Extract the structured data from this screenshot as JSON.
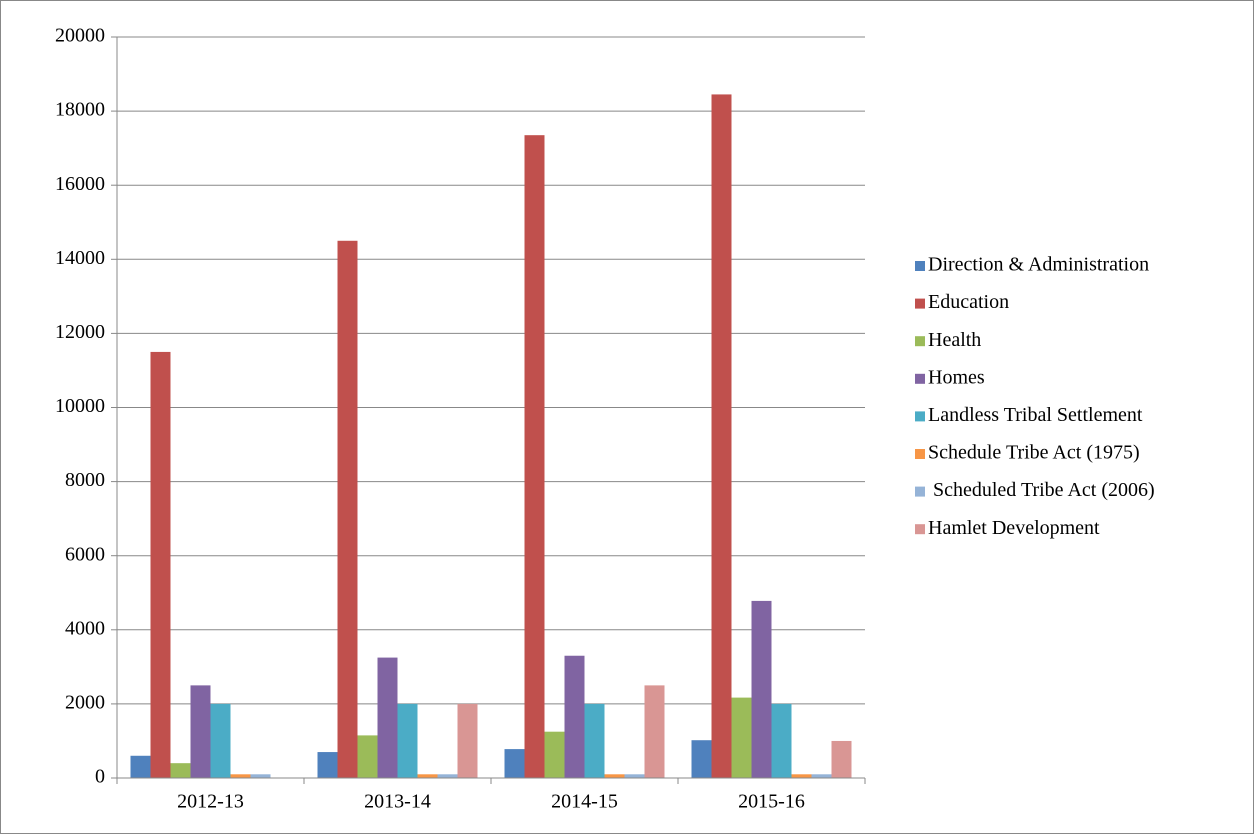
{
  "chart_data": {
    "type": "bar",
    "categories": [
      "2012-13",
      "2013-14",
      "2014-15",
      "2015-16"
    ],
    "series": [
      {
        "name": "Direction & Administration",
        "color": "#4f81bd",
        "values": [
          600,
          700,
          780,
          1020
        ]
      },
      {
        "name": "Education",
        "color": "#c0504d",
        "values": [
          11500,
          14500,
          17350,
          18450
        ]
      },
      {
        "name": "Health",
        "color": "#9bbb59",
        "values": [
          400,
          1150,
          1250,
          2170
        ]
      },
      {
        "name": "Homes",
        "color": "#8064a2",
        "values": [
          2500,
          3250,
          3300,
          4780
        ]
      },
      {
        "name": "Landless Tribal Settlement",
        "color": "#4bacc6",
        "values": [
          2000,
          2000,
          2000,
          2000
        ]
      },
      {
        "name": "Schedule Tribe Act (1975)",
        "color": "#f79646",
        "values": [
          100,
          100,
          100,
          100
        ]
      },
      {
        "name": " Scheduled Tribe Act (2006)",
        "color": "#95b3d7",
        "values": [
          100,
          100,
          100,
          100
        ]
      },
      {
        "name": "Hamlet Development",
        "color": "#d99694",
        "values": [
          0,
          2000,
          2500,
          1000
        ]
      }
    ],
    "ylim": [
      0,
      20000
    ],
    "yticks": [
      0,
      2000,
      4000,
      6000,
      8000,
      10000,
      12000,
      14000,
      16000,
      18000,
      20000
    ],
    "grid": true,
    "legend": "right"
  }
}
